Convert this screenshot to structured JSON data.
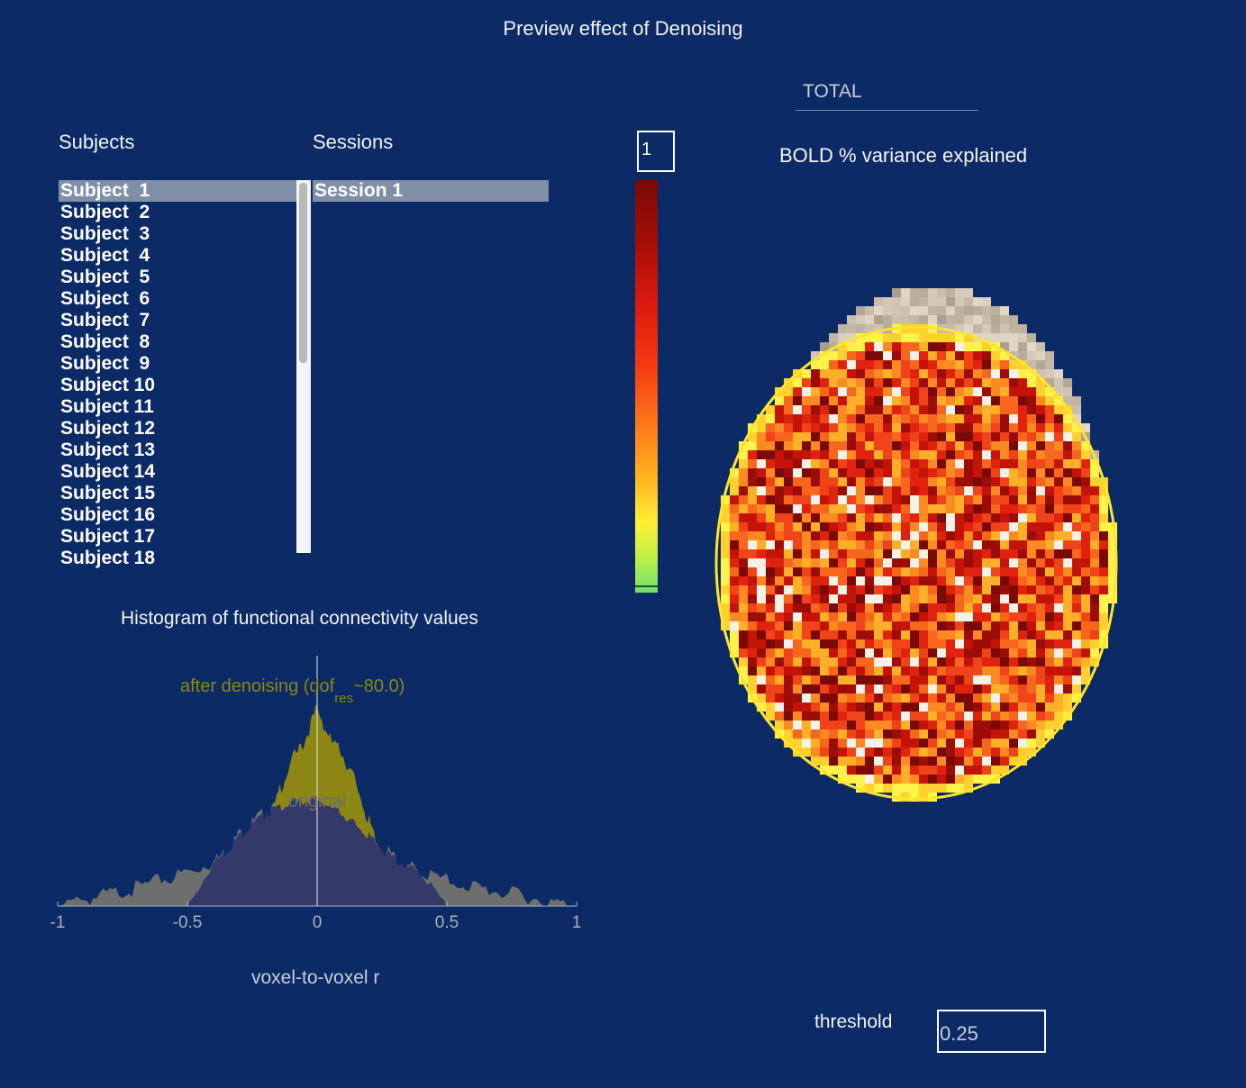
{
  "page_title": "Preview effect of Denoising",
  "subjects": {
    "header": "Subjects",
    "items": [
      "Subject  1",
      "Subject  2",
      "Subject  3",
      "Subject  4",
      "Subject  5",
      "Subject  6",
      "Subject  7",
      "Subject  8",
      "Subject  9",
      "Subject 10",
      "Subject 11",
      "Subject 12",
      "Subject 13",
      "Subject 14",
      "Subject 15",
      "Subject 16",
      "Subject 17",
      "Subject 18"
    ],
    "selected_index": 0
  },
  "sessions": {
    "header": "Sessions",
    "items": [
      "Session 1"
    ],
    "selected_index": 0
  },
  "colorbar": {
    "value": "1"
  },
  "view": {
    "tab": "TOTAL",
    "map_title": "BOLD % variance explained"
  },
  "threshold": {
    "label": "threshold",
    "value": "0.25"
  },
  "colors": {
    "background": "#0b2a66",
    "after_fill": "#8c8714",
    "original_fill": "#333a6a",
    "gray_fill": "#6e6e6e"
  },
  "chart_data": {
    "type": "area",
    "title": "Histogram of functional connectivity values",
    "xlabel": "voxel-to-voxel r",
    "ylabel": "",
    "xlim": [
      -1,
      1
    ],
    "xticks": [
      -1,
      -0.5,
      0,
      0.5,
      1
    ],
    "xtick_labels": [
      "-1",
      "-0.5",
      "0",
      "0.5",
      "1"
    ],
    "annotations": {
      "after_label": "after denoising (dof",
      "after_sub": "res",
      "after_suffix": "~80.0)",
      "original_label": "original"
    },
    "series": [
      {
        "name": "after denoising",
        "x": [
          -1,
          -0.9,
          -0.8,
          -0.7,
          -0.6,
          -0.5,
          -0.4,
          -0.35,
          -0.3,
          -0.25,
          -0.2,
          -0.15,
          -0.1,
          -0.05,
          0,
          0.05,
          0.1,
          0.15,
          0.2,
          0.25,
          0.3,
          0.35,
          0.4,
          0.5,
          0.6,
          0.7,
          0.8,
          0.9,
          1
        ],
        "values": [
          0,
          0,
          0,
          0,
          0,
          0,
          0.01,
          0.02,
          0.05,
          0.14,
          0.33,
          0.57,
          0.73,
          0.83,
          1.0,
          0.84,
          0.76,
          0.62,
          0.42,
          0.23,
          0.1,
          0.04,
          0.01,
          0,
          0,
          0,
          0,
          0,
          0
        ]
      },
      {
        "name": "original",
        "x": [
          -1,
          -0.9,
          -0.8,
          -0.7,
          -0.6,
          -0.5,
          -0.4,
          -0.35,
          -0.3,
          -0.25,
          -0.2,
          -0.15,
          -0.1,
          -0.05,
          0,
          0.05,
          0.1,
          0.15,
          0.2,
          0.25,
          0.3,
          0.35,
          0.4,
          0.5,
          0.6,
          0.7,
          0.8,
          0.9,
          1
        ],
        "values": [
          0.0,
          0.03,
          0.06,
          0.09,
          0.13,
          0.17,
          0.22,
          0.28,
          0.36,
          0.42,
          0.47,
          0.5,
          0.52,
          0.53,
          0.54,
          0.5,
          0.46,
          0.41,
          0.35,
          0.29,
          0.24,
          0.2,
          0.17,
          0.13,
          0.1,
          0.07,
          0.05,
          0.02,
          0.0
        ]
      }
    ]
  }
}
